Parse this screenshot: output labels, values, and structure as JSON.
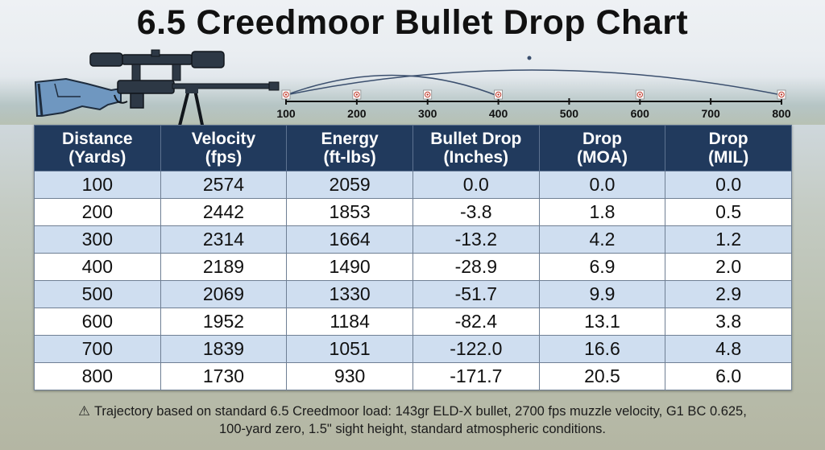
{
  "page": {
    "title": "6.5 Creedmoor Bullet Drop Chart",
    "footnote_icon": "warning-icon",
    "footnote_line1": "Trajectory based on standard 6.5 Creedmoor load: 143gr ELD-X bullet, 2700 fps muzzle velocity, G1 BC 0.625,",
    "footnote_line2": "100-yard zero, 1.5\" sight height, standard atmospheric conditions."
  },
  "colors": {
    "header_bg": "#213a5d",
    "header_text": "#ffffff",
    "row_alt": "#cfdef0",
    "row_plain": "#ffffff",
    "trajectory_line": "#3b4f6e"
  },
  "trajectory": {
    "ticks": [
      "100",
      "200",
      "300",
      "400",
      "500",
      "600",
      "700",
      "800"
    ],
    "targets_at": [
      "100",
      "200",
      "300",
      "400",
      "600",
      "800"
    ]
  },
  "chart_data": {
    "type": "table",
    "title": "6.5 Creedmoor Bullet Drop Chart",
    "columns": [
      {
        "line1": "Distance",
        "line2": "(Yards)"
      },
      {
        "line1": "Velocity",
        "line2": "(fps)"
      },
      {
        "line1": "Energy",
        "line2": "(ft-lbs)"
      },
      {
        "line1": "Bullet Drop",
        "line2": "(Inches)"
      },
      {
        "line1": "Drop",
        "line2": "(MOA)"
      },
      {
        "line1": "Drop",
        "line2": "(MIL)"
      }
    ],
    "rows": [
      [
        "100",
        "2574",
        "2059",
        "0.0",
        "0.0",
        "0.0"
      ],
      [
        "200",
        "2442",
        "1853",
        "-3.8",
        "1.8",
        "0.5"
      ],
      [
        "300",
        "2314",
        "1664",
        "-13.2",
        "4.2",
        "1.2"
      ],
      [
        "400",
        "2189",
        "1490",
        "-28.9",
        "6.9",
        "2.0"
      ],
      [
        "500",
        "2069",
        "1330",
        "-51.7",
        "9.9",
        "2.9"
      ],
      [
        "600",
        "1952",
        "1184",
        "-82.4",
        "13.1",
        "3.8"
      ],
      [
        "700",
        "1839",
        "1051",
        "-122.0",
        "16.6",
        "4.8"
      ],
      [
        "800",
        "1730",
        "930",
        "-171.7",
        "20.5",
        "6.0"
      ]
    ]
  }
}
